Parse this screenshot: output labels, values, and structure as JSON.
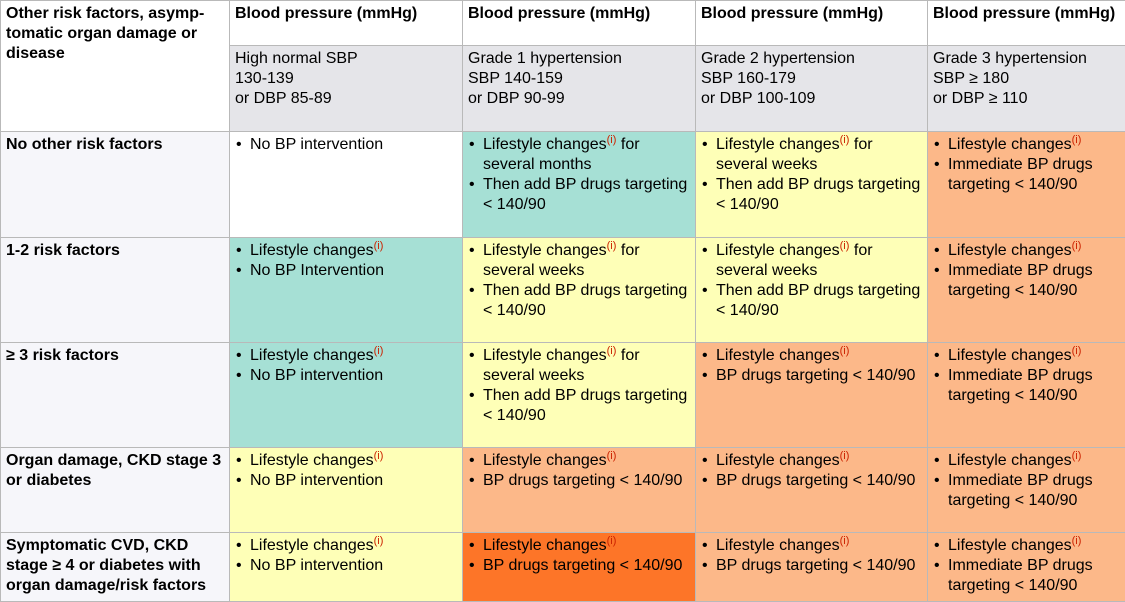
{
  "corner_label": "Other risk factors, asymp- tomatic organ damage or disease",
  "columns": [
    {
      "header": "Blood pressure (mmHg)",
      "grade_lines": [
        "High normal SBP",
        "130-139",
        "or DBP 85-89"
      ]
    },
    {
      "header": "Blood pressure (mmHg)",
      "grade_lines": [
        "Grade 1 hypertension",
        "SBP 140-159",
        "or DBP 90-99"
      ]
    },
    {
      "header": "Blood pressure (mmHg)",
      "grade_lines": [
        "Grade 2 hypertension",
        "SBP 160-179",
        "or DBP 100-109"
      ]
    },
    {
      "header": "Blood pressure (mmHg)",
      "grade_lines": [
        "Grade 3 hypertension",
        "SBP ≥ 180",
        "or DBP ≥ 110"
      ]
    }
  ],
  "info_marker": "(i)",
  "colors": {
    "white": "#ffffff",
    "teal": "#a6e0d5",
    "yellow": "#feffb7",
    "peach": "#fcb889",
    "orange": "#fd7528",
    "info_marker": "#cc2200"
  },
  "rows": [
    {
      "label": "No other risk factors",
      "cells": [
        {
          "color": "white",
          "items": [
            {
              "pre": "No BP intervention"
            }
          ]
        },
        {
          "color": "teal",
          "items": [
            {
              "pre": "Lifestyle changes",
              "info": true,
              "post": " for several months"
            },
            {
              "pre": "Then add BP drugs targeting < 140/90"
            }
          ]
        },
        {
          "color": "yellow",
          "items": [
            {
              "pre": "Lifestyle changes",
              "info": true,
              "post": " for several weeks"
            },
            {
              "pre": "Then add BP drugs targeting < 140/90"
            }
          ]
        },
        {
          "color": "peach",
          "items": [
            {
              "pre": "Lifestyle changes",
              "info": true
            },
            {
              "pre": "Immediate BP drugs targeting < 140/90"
            }
          ]
        }
      ]
    },
    {
      "label": "1-2 risk factors",
      "cells": [
        {
          "color": "teal",
          "items": [
            {
              "pre": "Lifestyle changes",
              "info": true
            },
            {
              "pre": "No BP Intervention"
            }
          ]
        },
        {
          "color": "yellow",
          "items": [
            {
              "pre": "Lifestyle changes",
              "info": true,
              "post": " for several weeks"
            },
            {
              "pre": "Then add BP drugs targeting < 140/90"
            }
          ]
        },
        {
          "color": "yellow",
          "items": [
            {
              "pre": "Lifestyle changes",
              "info": true,
              "post": " for several weeks"
            },
            {
              "pre": "Then add BP drugs targeting < 140/90"
            }
          ]
        },
        {
          "color": "peach",
          "items": [
            {
              "pre": "Lifestyle changes",
              "info": true
            },
            {
              "pre": "Immediate BP drugs targeting < 140/90"
            }
          ]
        }
      ]
    },
    {
      "label": "≥ 3 risk factors",
      "cells": [
        {
          "color": "teal",
          "items": [
            {
              "pre": "Lifestyle changes",
              "info": true
            },
            {
              "pre": "No BP intervention"
            }
          ]
        },
        {
          "color": "yellow",
          "items": [
            {
              "pre": "Lifestyle changes",
              "info": true,
              "post": " for several weeks"
            },
            {
              "pre": "Then add BP drugs targeting < 140/90"
            }
          ]
        },
        {
          "color": "peach",
          "items": [
            {
              "pre": "Lifestyle changes",
              "info": true
            },
            {
              "pre": "BP drugs targeting < 140/90"
            }
          ]
        },
        {
          "color": "peach",
          "items": [
            {
              "pre": "Lifestyle changes",
              "info": true
            },
            {
              "pre": "Immediate BP drugs targeting < 140/90"
            }
          ]
        }
      ]
    },
    {
      "label": "Organ damage, CKD stage 3 or diabetes",
      "cells": [
        {
          "color": "yellow",
          "items": [
            {
              "pre": "Lifestyle changes",
              "info": true
            },
            {
              "pre": "No BP intervention"
            }
          ]
        },
        {
          "color": "peach",
          "items": [
            {
              "pre": "Lifestyle changes",
              "info": true
            },
            {
              "pre": "BP drugs targeting < 140/90"
            }
          ]
        },
        {
          "color": "peach",
          "items": [
            {
              "pre": "Lifestyle changes",
              "info": true
            },
            {
              "pre": "BP drugs targeting < 140/90"
            }
          ]
        },
        {
          "color": "peach",
          "items": [
            {
              "pre": "Lifestyle changes",
              "info": true
            },
            {
              "pre": "Immediate BP drugs targeting < 140/90"
            }
          ]
        }
      ]
    },
    {
      "label": "Symptomatic CVD, CKD stage ≥ 4 or diabetes with organ damage/risk factors",
      "cells": [
        {
          "color": "yellow",
          "items": [
            {
              "pre": "Lifestyle changes",
              "info": true
            },
            {
              "pre": "No BP intervention"
            }
          ]
        },
        {
          "color": "orange",
          "items": [
            {
              "pre": "Lifestyle changes",
              "info": true
            },
            {
              "pre": "BP drugs targeting < 140/90"
            }
          ]
        },
        {
          "color": "peach",
          "items": [
            {
              "pre": "Lifestyle changes",
              "info": true
            },
            {
              "pre": "BP drugs targeting < 140/90"
            }
          ]
        },
        {
          "color": "peach",
          "items": [
            {
              "pre": "Lifestyle changes",
              "info": true
            },
            {
              "pre": "Immediate BP drugs targeting < 140/90"
            }
          ]
        }
      ]
    }
  ]
}
